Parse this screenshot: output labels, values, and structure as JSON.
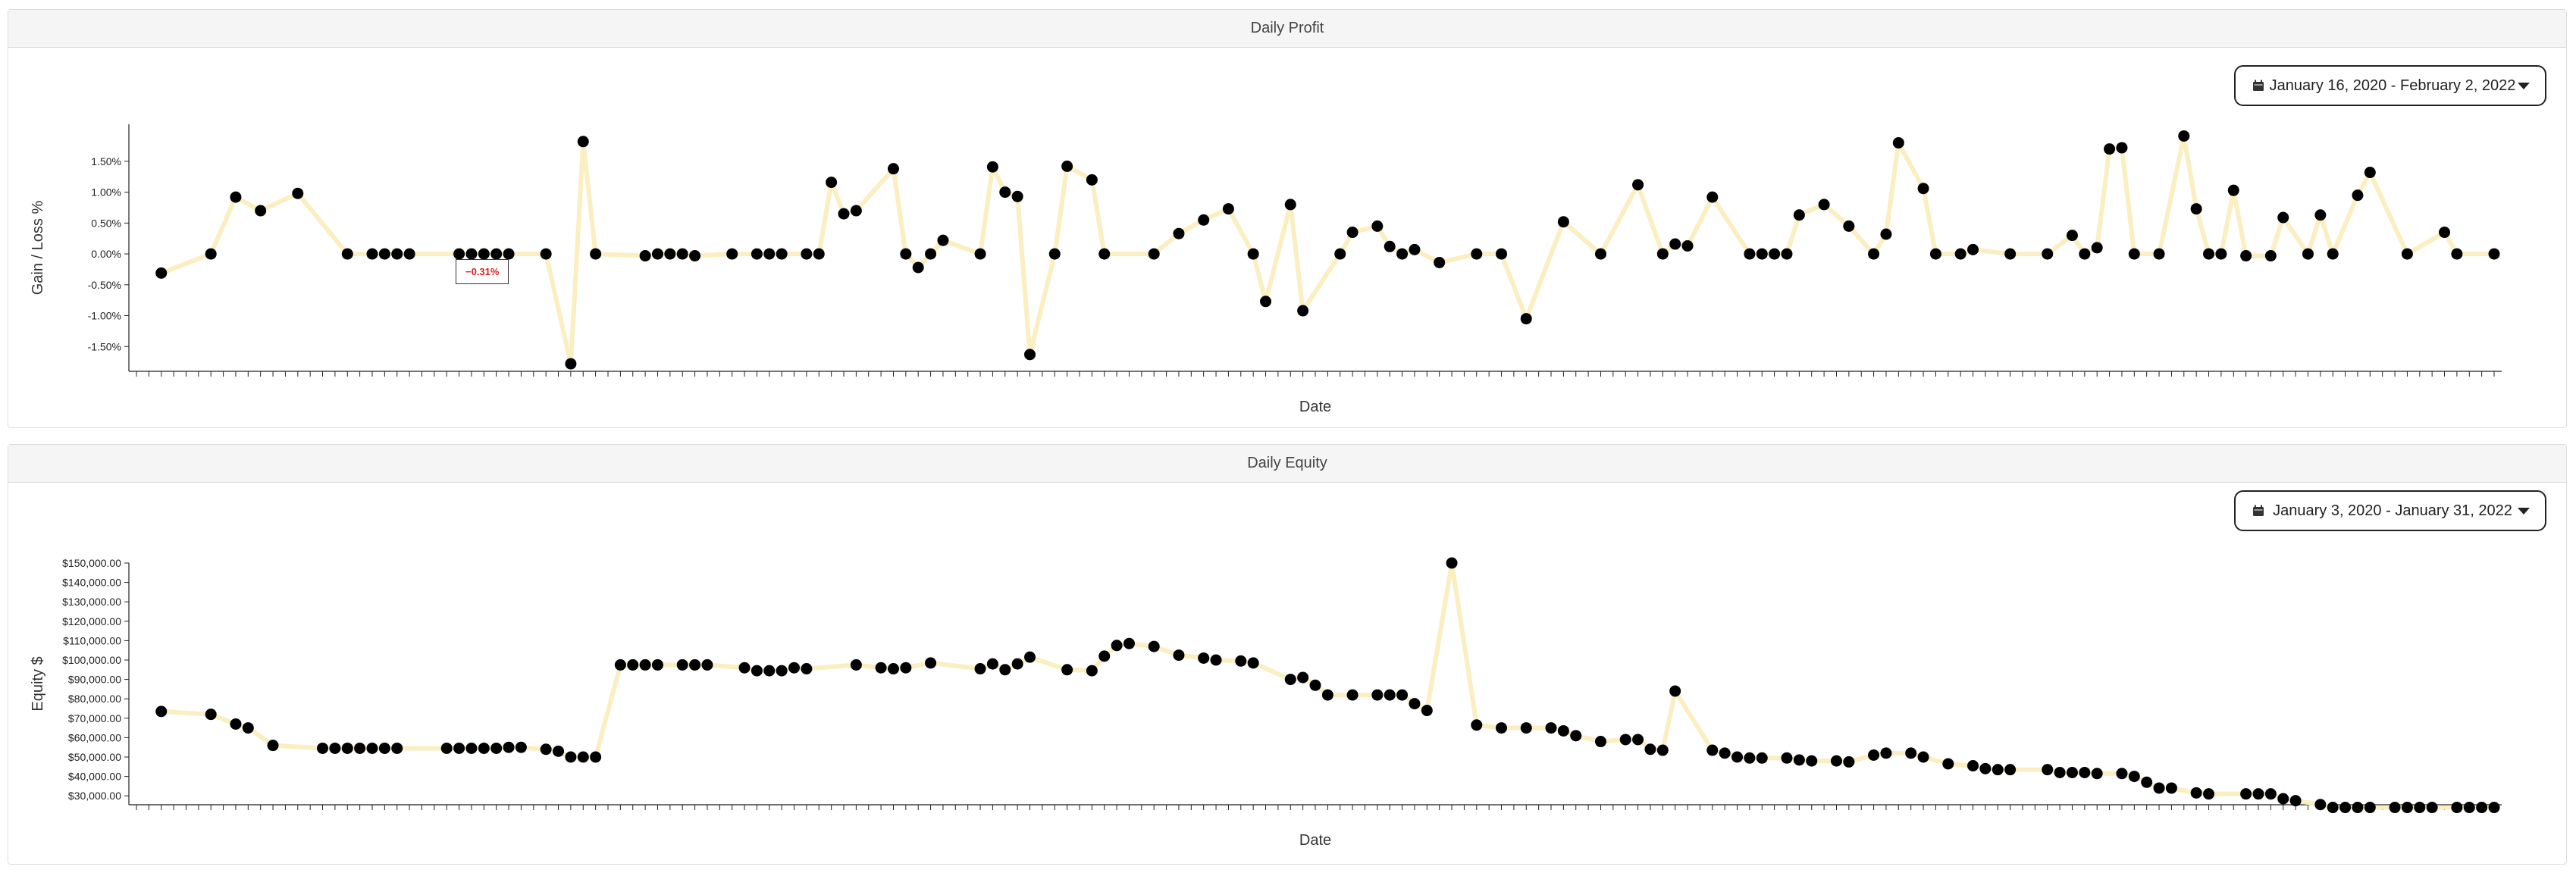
{
  "panels": {
    "profit": {
      "title": "Daily Profit",
      "date_range": "January 16, 2020 - February 2, 2022",
      "tooltip": "−0.31%",
      "x_axis_title": "Date",
      "y_axis_title": "Gain / Loss %"
    },
    "equity": {
      "title": "Daily Equity",
      "date_range": "January 3, 2020 - January 31, 2022",
      "x_axis_title": "Date",
      "y_axis_title": "Equity $"
    }
  },
  "icons": {
    "date_picker": "calendar-icon",
    "dropdown": "caret-down-icon"
  },
  "colors": {
    "line": "#fbeec1",
    "point": "#000000",
    "tooltip_text": "#e02020"
  },
  "chart_data": [
    {
      "type": "line",
      "title": "Daily Profit",
      "xlabel": "Date",
      "ylabel": "Gain / Loss %",
      "ylim": [
        -2.0,
        2.1
      ],
      "yticks": [
        "1.50%",
        "1.00%",
        "0.50%",
        "0.00%",
        "-0.50%",
        "-1.00%",
        "-1.50%"
      ],
      "ytick_values": [
        1.5,
        1.0,
        0.5,
        0.0,
        -0.5,
        -1.0,
        -1.5
      ],
      "grid": false,
      "x_index_range": [
        0,
        190
      ],
      "series": [
        {
          "x": [
            2,
            6,
            8,
            10,
            13,
            17,
            19,
            20,
            21,
            22,
            26,
            27,
            28,
            29,
            30,
            33,
            35,
            36,
            37,
            41,
            42,
            43,
            44,
            45,
            48,
            50,
            51,
            52,
            54,
            55,
            56,
            57,
            58,
            61,
            62,
            63,
            64,
            65,
            68,
            69,
            70,
            71,
            72,
            74,
            75,
            77,
            78,
            82,
            84,
            86,
            88,
            90,
            91,
            93,
            94,
            97,
            98,
            100,
            101,
            102,
            103,
            105,
            108,
            110,
            112,
            115,
            118,
            121,
            123,
            124,
            125,
            127,
            130,
            131,
            132,
            133,
            134,
            136,
            138,
            140,
            141,
            142,
            144,
            145,
            147,
            148,
            151,
            154,
            156,
            157,
            158,
            159,
            160,
            161,
            163,
            165,
            166,
            167,
            168,
            169,
            170,
            172,
            173,
            175,
            176,
            177,
            179,
            180,
            183,
            186,
            187,
            190
          ],
          "y": [
            -0.31,
            0.0,
            0.92,
            0.7,
            0.98,
            0.0,
            0.0,
            0.0,
            0.0,
            0.0,
            0.0,
            0.0,
            0.0,
            0.0,
            0.0,
            0.0,
            -1.78,
            1.82,
            0.0,
            -0.03,
            0.0,
            0.0,
            0.0,
            -0.03,
            0.0,
            0.0,
            0.0,
            0.0,
            0.0,
            0.0,
            1.16,
            0.65,
            0.7,
            1.38,
            0.0,
            -0.22,
            0.0,
            0.22,
            0.0,
            1.41,
            1.0,
            0.93,
            -1.63,
            0.0,
            1.42,
            1.2,
            0.0,
            0.0,
            0.33,
            0.55,
            0.73,
            0.0,
            -0.77,
            0.8,
            -0.92,
            0.0,
            0.35,
            0.45,
            0.12,
            0.0,
            0.07,
            -0.14,
            0.0,
            0.0,
            -1.05,
            0.52,
            0.0,
            1.12,
            0.0,
            0.16,
            0.13,
            0.92,
            0.0,
            0.0,
            0.0,
            0.0,
            0.63,
            0.8,
            0.45,
            0.0,
            0.32,
            1.8,
            1.06,
            0.0,
            0.0,
            0.07,
            0.0,
            0.0,
            0.3,
            0.0,
            0.1,
            1.7,
            1.72,
            0.0,
            0.0,
            1.91,
            0.73,
            0.0,
            0.0,
            1.03,
            -0.03,
            -0.03,
            0.59,
            0.0,
            0.63,
            0.0,
            0.95,
            1.32,
            0.0,
            0.35,
            0.0,
            0.0
          ]
        }
      ]
    },
    {
      "type": "line",
      "title": "Daily Equity",
      "xlabel": "Date",
      "ylabel": "Equity $",
      "ylim": [
        25000,
        150000
      ],
      "yticks": [
        "$150,000.00",
        "$140,000.00",
        "$130,000.00",
        "$120,000.00",
        "$110,000.00",
        "$100,000.00",
        "$90,000.00",
        "$80,000.00",
        "$70,000.00",
        "$60,000.00",
        "$50,000.00",
        "$40,000.00",
        "$30,000.00"
      ],
      "ytick_values": [
        150000,
        140000,
        130000,
        120000,
        110000,
        100000,
        90000,
        80000,
        70000,
        60000,
        50000,
        40000,
        30000
      ],
      "grid": false,
      "x_index_range": [
        0,
        190
      ],
      "series": [
        {
          "x": [
            2,
            6,
            8,
            9,
            11,
            15,
            16,
            17,
            18,
            19,
            20,
            21,
            25,
            26,
            27,
            28,
            29,
            30,
            31,
            33,
            34,
            35,
            36,
            37,
            39,
            40,
            41,
            42,
            44,
            45,
            46,
            49,
            50,
            51,
            52,
            53,
            54,
            58,
            60,
            61,
            62,
            64,
            68,
            69,
            70,
            71,
            72,
            75,
            77,
            78,
            79,
            80,
            82,
            84,
            86,
            87,
            89,
            90,
            93,
            94,
            95,
            96,
            98,
            100,
            101,
            102,
            103,
            104,
            106,
            108,
            110,
            112,
            114,
            115,
            116,
            118,
            120,
            121,
            122,
            123,
            124,
            127,
            128,
            129,
            130,
            131,
            133,
            134,
            135,
            137,
            138,
            140,
            141,
            143,
            144,
            146,
            148,
            149,
            150,
            151,
            154,
            155,
            156,
            157,
            158,
            160,
            161,
            162,
            163,
            164,
            166,
            167,
            170,
            171,
            172,
            173,
            174,
            176,
            177,
            178,
            179,
            180,
            182,
            183,
            184,
            185,
            187,
            188,
            189,
            190
          ],
          "y": [
            73500,
            72000,
            67000,
            65000,
            56000,
            54500,
            54500,
            54500,
            54500,
            54500,
            54500,
            54500,
            54500,
            54500,
            54500,
            54500,
            54500,
            55000,
            55000,
            54000,
            53000,
            50000,
            50000,
            50000,
            97500,
            97500,
            97500,
            97500,
            97500,
            97500,
            97500,
            96000,
            94500,
            94500,
            94500,
            96000,
            95500,
            97500,
            96000,
            95500,
            96000,
            98500,
            95500,
            98000,
            95000,
            98000,
            101500,
            95000,
            94500,
            102000,
            107500,
            108500,
            107000,
            102500,
            101000,
            100000,
            99500,
            98500,
            90000,
            91000,
            87000,
            82000,
            82000,
            82000,
            82000,
            82000,
            77500,
            74000,
            150000,
            66500,
            65000,
            65000,
            65000,
            63500,
            61000,
            58000,
            59000,
            59000,
            54000,
            53500,
            84000,
            53500,
            52000,
            50000,
            49500,
            49500,
            49500,
            48500,
            48000,
            48000,
            47500,
            51000,
            52000,
            52000,
            50000,
            46500,
            45500,
            44000,
            43500,
            43500,
            43500,
            42000,
            42000,
            42000,
            41500,
            41500,
            40000,
            37000,
            34000,
            34000,
            31500,
            31000,
            31000,
            31000,
            31000,
            28500,
            27500,
            25500,
            24000,
            24000,
            24000,
            24000,
            24000,
            24000,
            24000,
            24000,
            24000,
            24000,
            24000,
            24000
          ]
        }
      ]
    }
  ]
}
